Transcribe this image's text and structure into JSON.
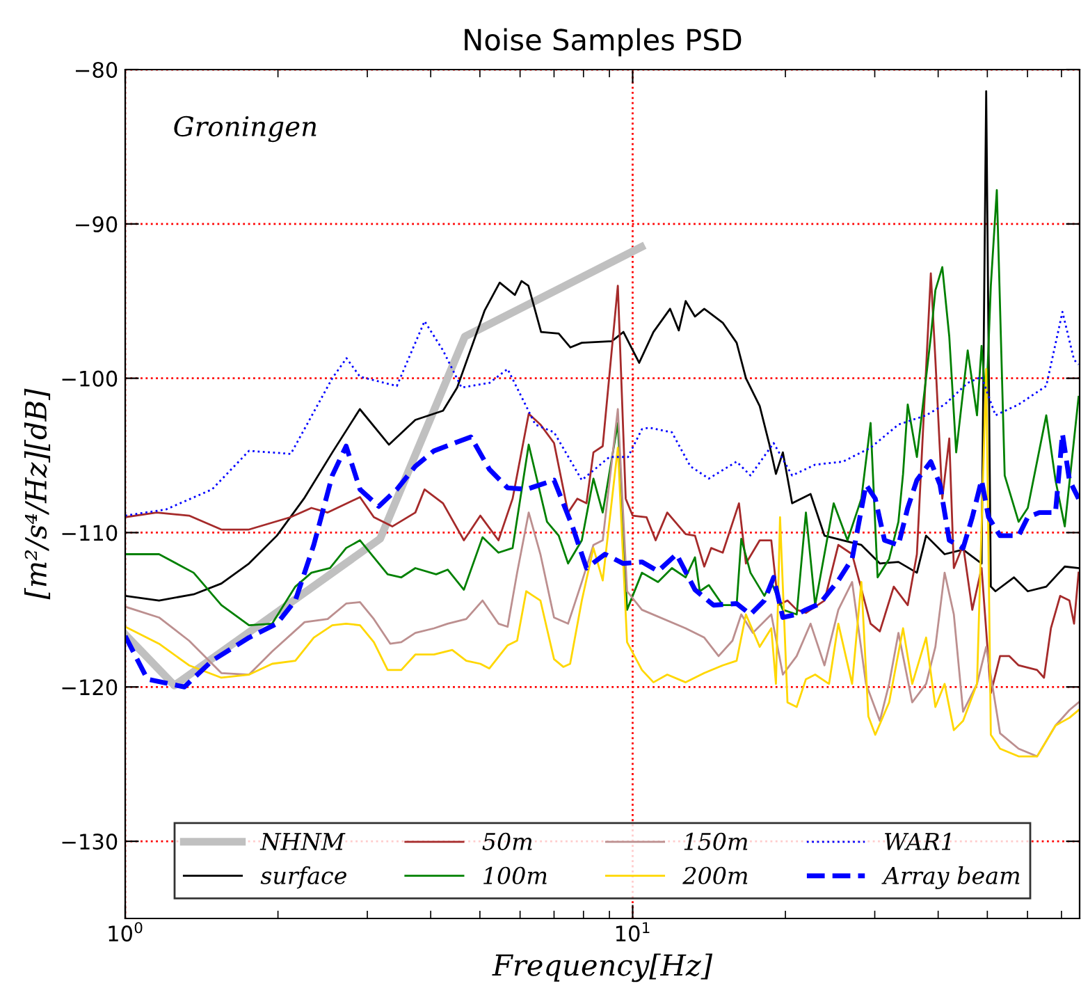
{
  "chart_data": {
    "type": "line",
    "title": "Noise Samples PSD",
    "xlabel": "Frequency[Hz]",
    "ylabel": "[m²/s⁴/Hz][dB]",
    "annotations": [
      "Groningen"
    ],
    "log": "x",
    "xlim": [
      1,
      76
    ],
    "xticks": [
      {
        "value": 1,
        "label": "10$^{0}$"
      },
      {
        "value": 10,
        "label": "10$^{1}$"
      }
    ],
    "ylim": [
      -135,
      -80
    ],
    "yticks": [
      -130,
      -120,
      -110,
      -100,
      -90,
      -80
    ],
    "grid": true,
    "legend": "bottom",
    "series": [
      {
        "name": "NHNM",
        "color": "#c0c0c0",
        "line_style": "solid",
        "x": [
          1.0,
          1.25,
          3.18,
          4.67,
          10.4
        ],
        "values": [
          -116.6,
          -119.9,
          -110.4,
          -97.3,
          -91.5
        ]
      },
      {
        "name": "surface",
        "color": "#000000",
        "line_style": "solid",
        "x": [
          1.0,
          1.166,
          1.364,
          1.547,
          1.754,
          1.99,
          2.25,
          2.56,
          2.9,
          3.31,
          3.73,
          4.23,
          4.51,
          5.11,
          5.47,
          5.86,
          6.04,
          6.23,
          6.6,
          7.15,
          7.54,
          7.94,
          9.1,
          9.59,
          10.3,
          10.99,
          11.85,
          12.33,
          12.72,
          13.27,
          13.84,
          15.05,
          16.03,
          16.72,
          17.8,
          18.57,
          19.16,
          19.77,
          20.62,
          22.42,
          23.88,
          25.97,
          28.23,
          30.7,
          33.4,
          36.32,
          37.87,
          41.19,
          44.79,
          48.71,
          49.74,
          50.8,
          51.88,
          56.41,
          60.08,
          65.33,
          71.05,
          75.65
        ],
        "values": [
          -114.1,
          -114.4,
          -114.0,
          -113.3,
          -112.0,
          -110.2,
          -107.8,
          -104.8,
          -102.0,
          -104.3,
          -102.7,
          -102.1,
          -100.6,
          -95.6,
          -93.8,
          -94.6,
          -93.7,
          -94.0,
          -97.0,
          -97.1,
          -98.0,
          -97.7,
          -97.6,
          -97.0,
          -99.0,
          -97.0,
          -95.5,
          -96.9,
          -95.0,
          -96.0,
          -95.5,
          -96.4,
          -97.7,
          -100.0,
          -101.8,
          -104.2,
          -106.2,
          -104.8,
          -108.1,
          -107.5,
          -110.2,
          -110.5,
          -110.8,
          -112.0,
          -111.9,
          -112.6,
          -110.2,
          -111.4,
          -111.1,
          -112.0,
          -81.4,
          -113.5,
          -113.8,
          -112.9,
          -113.8,
          -113.5,
          -112.2,
          -112.3
        ]
      },
      {
        "name": "50m",
        "color": "#a52a2a",
        "line_style": "solid",
        "x": [
          1.0,
          1.153,
          1.336,
          1.547,
          1.754,
          2.118,
          2.328,
          2.506,
          2.902,
          3.09,
          3.36,
          3.73,
          3.89,
          4.23,
          4.65,
          5.01,
          5.44,
          5.8,
          6.24,
          6.58,
          7.0,
          7.46,
          7.78,
          8.11,
          8.37,
          8.73,
          9.35,
          9.69,
          10.0,
          10.65,
          11.1,
          11.7,
          12.72,
          13.27,
          13.84,
          14.28,
          15.05,
          16.2,
          16.72,
          17.8,
          18.76,
          19.36,
          20.19,
          21.05,
          21.95,
          23.88,
          25.43,
          27.07,
          29.44,
          30.7,
          32.7,
          34.84,
          36.32,
          38.69,
          39.5,
          40.76,
          42.07,
          42.95,
          44.79,
          46.7,
          48.71,
          50.8,
          52.97,
          55.25,
          57.62,
          62.66,
          64.66,
          66.72,
          69.58,
          72.56,
          74.11,
          75.65
        ],
        "values": [
          -109.0,
          -108.7,
          -108.9,
          -109.8,
          -109.8,
          -109.0,
          -108.4,
          -108.7,
          -107.7,
          -109.0,
          -109.6,
          -108.7,
          -107.2,
          -108.1,
          -110.5,
          -108.9,
          -110.5,
          -107.8,
          -102.3,
          -103.0,
          -104.2,
          -108.7,
          -107.8,
          -108.1,
          -104.8,
          -104.4,
          -94.0,
          -107.8,
          -108.9,
          -109.0,
          -110.5,
          -108.7,
          -110.1,
          -110.2,
          -112.2,
          -111.0,
          -111.3,
          -108.1,
          -112.0,
          -110.5,
          -110.5,
          -114.7,
          -114.4,
          -115.0,
          -115.2,
          -114.4,
          -110.8,
          -111.4,
          -115.9,
          -116.4,
          -113.5,
          -114.7,
          -111.4,
          -93.2,
          -98.8,
          -107.8,
          -103.9,
          -112.3,
          -110.8,
          -115.0,
          -112.3,
          -120.4,
          -118.0,
          -118.0,
          -118.6,
          -118.9,
          -119.4,
          -116.2,
          -114.1,
          -114.4,
          -115.9,
          -112.6
        ]
      },
      {
        "name": "100m",
        "color": "#008000",
        "line_style": "solid",
        "x": [
          1.0,
          1.166,
          1.364,
          1.547,
          1.754,
          1.948,
          2.164,
          2.328,
          2.533,
          2.725,
          2.902,
          3.29,
          3.5,
          3.73,
          4.1,
          4.32,
          4.65,
          5.06,
          5.44,
          5.8,
          6.24,
          6.78,
          7.15,
          7.46,
          7.94,
          8.37,
          8.73,
          9.35,
          9.75,
          10.43,
          11.22,
          11.95,
          12.72,
          13.27,
          13.56,
          14.13,
          15.05,
          16.03,
          16.37,
          17.07,
          18.18,
          18.76,
          19.77,
          21.05,
          21.95,
          22.89,
          24.9,
          26.51,
          28.23,
          29.44,
          30.39,
          32.02,
          33.4,
          34.11,
          34.84,
          36.32,
          38.69,
          39.5,
          40.76,
          42.07,
          43.41,
          45.74,
          47.71,
          48.71,
          49.74,
          50.8,
          52.2,
          54.1,
          57.62,
          60.08,
          65.33,
          68.12,
          71.05,
          75.65
        ],
        "values": [
          -111.4,
          -111.4,
          -112.6,
          -114.7,
          -116.0,
          -115.9,
          -113.5,
          -112.6,
          -112.3,
          -111.0,
          -110.5,
          -112.7,
          -112.9,
          -112.3,
          -112.7,
          -112.4,
          -113.7,
          -110.3,
          -111.3,
          -111.0,
          -104.3,
          -109.3,
          -110.2,
          -112.0,
          -110.5,
          -106.5,
          -108.7,
          -102.9,
          -115.0,
          -112.6,
          -113.2,
          -112.3,
          -112.9,
          -111.6,
          -113.8,
          -113.4,
          -114.7,
          -114.7,
          -110.4,
          -112.6,
          -114.1,
          -113.2,
          -115.0,
          -115.3,
          -108.7,
          -114.7,
          -108.1,
          -110.5,
          -107.8,
          -102.9,
          -112.9,
          -111.7,
          -109.3,
          -106.2,
          -101.7,
          -105.1,
          -97.3,
          -94.3,
          -92.8,
          -97.3,
          -104.8,
          -98.2,
          -102.4,
          -97.9,
          -101.8,
          -94.0,
          -87.8,
          -106.3,
          -109.3,
          -108.4,
          -102.4,
          -106.6,
          -109.6,
          -101.2
        ]
      },
      {
        "name": "150m",
        "color": "#bc8f8f",
        "line_style": "solid",
        "x": [
          1.0,
          1.166,
          1.336,
          1.547,
          1.754,
          1.948,
          2.257,
          2.506,
          2.725,
          2.902,
          3.09,
          3.33,
          3.5,
          3.73,
          4.06,
          4.32,
          4.7,
          5.06,
          5.44,
          5.67,
          5.92,
          6.24,
          6.58,
          7.0,
          7.46,
          7.94,
          8.37,
          8.73,
          9.35,
          9.75,
          10.43,
          12.72,
          13.84,
          14.77,
          15.73,
          16.37,
          17.25,
          18.76,
          19.77,
          21.05,
          22.42,
          23.88,
          25.43,
          27.07,
          28.83,
          30.7,
          32.02,
          33.4,
          35.56,
          37.87,
          39.5,
          41.19,
          42.95,
          44.79,
          47.71,
          49.74,
          52.97,
          57.62,
          62.66,
          68.12,
          72.56,
          75.65
        ],
        "values": [
          -114.8,
          -115.5,
          -117.0,
          -119.1,
          -119.2,
          -117.7,
          -115.8,
          -115.6,
          -114.6,
          -114.5,
          -115.6,
          -117.2,
          -117.1,
          -116.5,
          -116.2,
          -115.9,
          -115.6,
          -114.4,
          -115.9,
          -116.1,
          -112.6,
          -108.7,
          -111.4,
          -115.5,
          -115.9,
          -113.2,
          -110.8,
          -110.5,
          -102.0,
          -113.8,
          -115.0,
          -116.2,
          -116.8,
          -118.0,
          -117.0,
          -115.3,
          -116.5,
          -115.3,
          -119.2,
          -118.0,
          -115.9,
          -118.6,
          -115.0,
          -113.2,
          -119.8,
          -122.2,
          -119.8,
          -116.5,
          -121.0,
          -119.8,
          -117.4,
          -112.6,
          -115.3,
          -121.6,
          -119.8,
          -117.4,
          -123.0,
          -124.0,
          -124.5,
          -122.5,
          -121.5,
          -121.0
        ]
      },
      {
        "name": "200m",
        "color": "#ffd700",
        "line_style": "solid",
        "x": [
          1.0,
          1.166,
          1.336,
          1.547,
          1.754,
          1.948,
          2.164,
          2.353,
          2.559,
          2.725,
          2.902,
          3.09,
          3.29,
          3.5,
          3.73,
          4.06,
          4.41,
          4.7,
          5.01,
          5.22,
          5.67,
          5.92,
          6.17,
          6.58,
          7.0,
          7.3,
          7.53,
          7.94,
          8.37,
          8.73,
          9.35,
          9.75,
          10.43,
          10.99,
          11.7,
          12.72,
          13.84,
          15.05,
          16.03,
          16.72,
          17.8,
          18.76,
          19.16,
          19.52,
          20.19,
          21.05,
          21.95,
          22.89,
          24.38,
          25.43,
          27.07,
          28.23,
          29.14,
          30.07,
          32.02,
          34.11,
          35.56,
          37.87,
          39.5,
          41.19,
          42.95,
          44.79,
          47.71,
          49.74,
          50.8,
          52.97,
          57.62,
          62.66,
          68.12,
          72.56,
          75.65
        ],
        "values": [
          -116.1,
          -117.2,
          -118.6,
          -119.4,
          -119.2,
          -118.5,
          -118.3,
          -116.8,
          -116.0,
          -115.9,
          -116.0,
          -117.1,
          -118.9,
          -118.9,
          -117.9,
          -117.9,
          -117.6,
          -118.3,
          -118.5,
          -118.8,
          -117.3,
          -117.0,
          -113.8,
          -114.4,
          -118.2,
          -118.7,
          -118.5,
          -114.4,
          -111.0,
          -113.1,
          -104.5,
          -117.1,
          -118.9,
          -119.7,
          -119.2,
          -119.7,
          -119.1,
          -118.6,
          -118.3,
          -115.3,
          -117.4,
          -116.2,
          -119.8,
          -109.0,
          -121.0,
          -121.3,
          -119.5,
          -119.2,
          -119.8,
          -115.9,
          -119.8,
          -113.2,
          -121.9,
          -123.1,
          -121.0,
          -116.2,
          -119.8,
          -116.8,
          -121.3,
          -119.8,
          -122.8,
          -122.2,
          -119.8,
          -99.4,
          -123.1,
          -124.0,
          -124.5,
          -124.5,
          -122.5,
          -122.0,
          -121.5
        ]
      },
      {
        "name": "WAR1",
        "color": "#0000ff",
        "line_style": "dotted",
        "x": [
          1.0,
          1.203,
          1.483,
          1.754,
          2.12,
          2.559,
          2.73,
          2.902,
          3.43,
          3.89,
          4.23,
          4.6,
          5.22,
          5.67,
          6.43,
          7.0,
          7.94,
          9.0,
          9.79,
          10.43,
          10.76,
          11.95,
          12.99,
          14.13,
          16.03,
          17.07,
          18.96,
          20.62,
          22.89,
          25.97,
          29.44,
          33.4,
          37.87,
          41.19,
          45.74,
          48.71,
          51.88,
          57.62,
          65.33,
          70.31,
          74.1,
          75.65
        ],
        "values": [
          -108.9,
          -108.5,
          -107.2,
          -104.7,
          -104.9,
          -100.0,
          -98.7,
          -99.9,
          -100.5,
          -96.3,
          -98.2,
          -100.6,
          -100.3,
          -99.4,
          -103.0,
          -103.5,
          -106.6,
          -105.1,
          -105.1,
          -103.3,
          -103.2,
          -103.5,
          -105.7,
          -106.5,
          -105.4,
          -106.3,
          -104.2,
          -106.3,
          -105.6,
          -105.4,
          -104.5,
          -103.0,
          -102.4,
          -101.7,
          -100.3,
          -99.9,
          -102.4,
          -101.7,
          -100.5,
          -95.7,
          -98.8,
          -99.1
        ]
      },
      {
        "name": "Array beam",
        "color": "#0000ff",
        "line_style": "dashed",
        "x": [
          1.0,
          1.106,
          1.308,
          1.483,
          1.754,
          1.99,
          2.164,
          2.353,
          2.559,
          2.725,
          2.902,
          3.16,
          3.43,
          3.73,
          4.06,
          4.8,
          5.22,
          5.67,
          6.17,
          7.0,
          7.61,
          8.11,
          8.82,
          9.58,
          10.43,
          11.22,
          12.2,
          13.27,
          14.43,
          16.03,
          17.07,
          18.18,
          18.96,
          19.77,
          21.05,
          21.95,
          23.38,
          25.43,
          27.07,
          28.83,
          30.07,
          31.36,
          33.4,
          34.84,
          36.32,
          38.69,
          40.34,
          42.07,
          44.79,
          46.7,
          48.71,
          50.27,
          52.97,
          57.62,
          60.08,
          63.31,
          68.12,
          70.31,
          72.56,
          75.65
        ],
        "values": [
          -116.7,
          -119.5,
          -120.0,
          -118.3,
          -116.8,
          -115.9,
          -114.4,
          -110.8,
          -106.3,
          -104.4,
          -107.2,
          -108.3,
          -107.2,
          -105.7,
          -104.7,
          -103.8,
          -105.9,
          -107.1,
          -107.2,
          -106.6,
          -109.6,
          -112.3,
          -111.4,
          -112.0,
          -111.9,
          -112.5,
          -111.4,
          -113.7,
          -114.7,
          -114.6,
          -115.3,
          -114.4,
          -112.9,
          -115.5,
          -115.3,
          -115.0,
          -114.6,
          -113.1,
          -111.7,
          -106.9,
          -107.8,
          -110.5,
          -110.8,
          -108.4,
          -106.6,
          -105.4,
          -106.9,
          -110.5,
          -111.0,
          -109.0,
          -106.6,
          -109.0,
          -110.2,
          -110.2,
          -109.0,
          -108.7,
          -108.7,
          -103.6,
          -106.6,
          -107.8
        ]
      }
    ]
  }
}
